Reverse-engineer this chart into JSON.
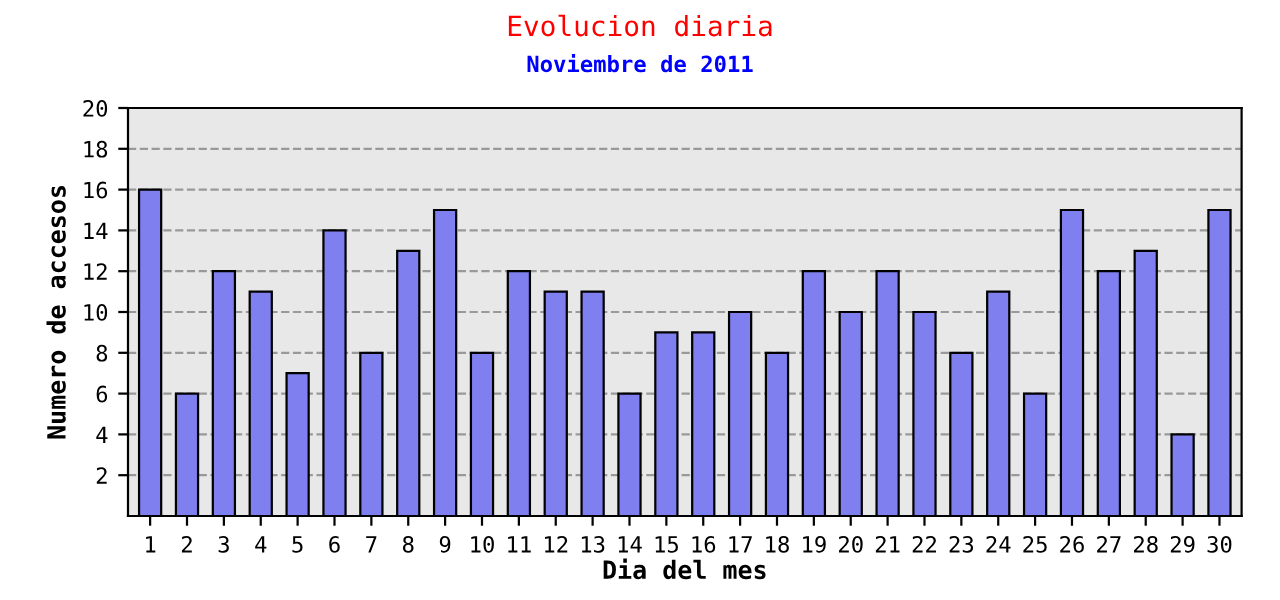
{
  "chart_data": {
    "type": "bar",
    "title": "Evolucion diaria",
    "subtitle": "Noviembre de 2011",
    "xlabel": "Dia del mes",
    "ylabel": "Numero de accesos",
    "categories": [
      "1",
      "2",
      "3",
      "4",
      "5",
      "6",
      "7",
      "8",
      "9",
      "10",
      "11",
      "12",
      "13",
      "14",
      "15",
      "16",
      "17",
      "18",
      "19",
      "20",
      "21",
      "22",
      "23",
      "24",
      "25",
      "26",
      "27",
      "28",
      "29",
      "30"
    ],
    "values": [
      16,
      6,
      12,
      11,
      7,
      14,
      8,
      13,
      15,
      8,
      12,
      11,
      11,
      6,
      9,
      9,
      10,
      8,
      12,
      10,
      12,
      10,
      8,
      11,
      6,
      15,
      12,
      13,
      4,
      15
    ],
    "color": "#7f7ff0",
    "ylim": [
      0,
      20
    ],
    "yticks": [
      2,
      4,
      6,
      8,
      10,
      12,
      14,
      16,
      18,
      20
    ],
    "grid": "y",
    "legend": false
  }
}
